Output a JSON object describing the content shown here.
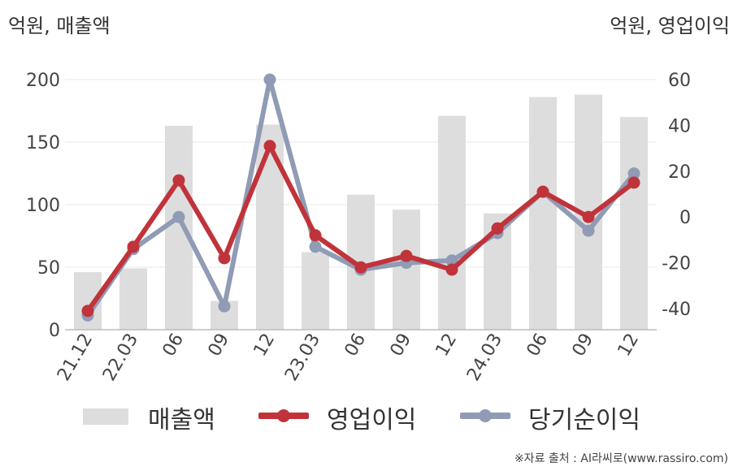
{
  "unit_left": "억원, 매출액",
  "unit_right": "억원, 영업이익",
  "source": "※자료 출처 : AI라씨로(www.rassiro.com)",
  "colors": {
    "bar": "#dddddd",
    "op": "#c1333a",
    "net": "#909bb5",
    "grid": "#e9e9e9",
    "axis": "#bbbbbb"
  },
  "chart_data": {
    "type": "bar",
    "categories": [
      "21.12",
      "22.03",
      "06",
      "09",
      "12",
      "23.03",
      "06",
      "09",
      "12",
      "24.03",
      "06",
      "09",
      "12"
    ],
    "y_left": {
      "ticks": [
        0,
        50,
        100,
        150,
        200
      ],
      "ylim": [
        0,
        200
      ]
    },
    "y_right": {
      "ticks": [
        -40,
        -20,
        0,
        20,
        40,
        60
      ],
      "ylim": [
        -50,
        60
      ]
    },
    "series": [
      {
        "name": "매출액",
        "type": "bar",
        "axis": "left",
        "values": [
          46,
          49,
          163,
          23,
          164,
          62,
          108,
          96,
          171,
          93,
          186,
          188,
          170
        ]
      },
      {
        "name": "영업이익",
        "type": "line",
        "axis": "right",
        "values": [
          -41,
          -13,
          16,
          -18,
          31,
          -8,
          -22,
          -17,
          -23,
          -5,
          11,
          0,
          15
        ]
      },
      {
        "name": "당기순이익",
        "type": "line",
        "axis": "right",
        "values": [
          -43,
          -14,
          0,
          -39,
          60,
          -13,
          -23,
          -20,
          -19,
          -7,
          11,
          -6,
          19
        ]
      }
    ]
  }
}
